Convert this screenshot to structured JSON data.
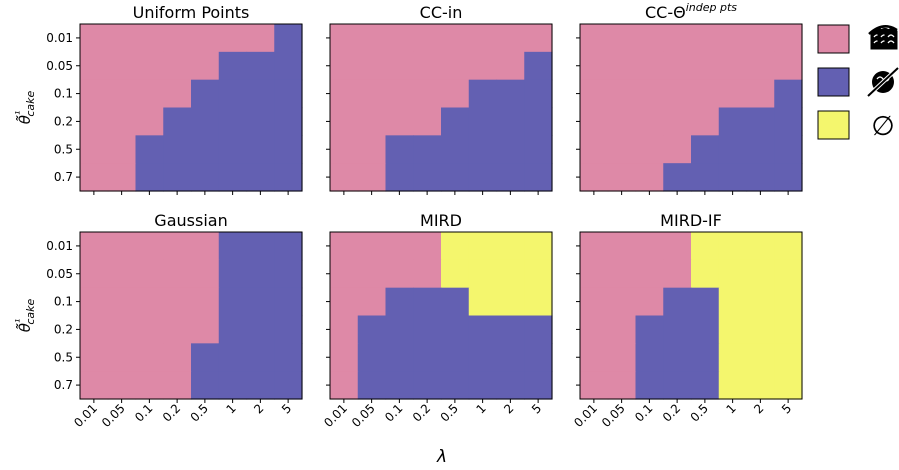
{
  "colors": {
    "pink": "#de89a7",
    "blue": "#6360b2",
    "yellow": "#f4f66d"
  },
  "legend": [
    {
      "color": "pink",
      "icon": "cake-slices-icon"
    },
    {
      "color": "blue",
      "icon": "no-cake-icon"
    },
    {
      "color": "yellow",
      "icon": "empty-set-icon",
      "symbol": "∅"
    }
  ],
  "xlabel": "λ",
  "ylabel": "θ̃¹cake",
  "chart_data": [
    {
      "type": "heatmap",
      "title": "Uniform Points",
      "x_categories": [
        "0.01",
        "0.05",
        "0.1",
        "0.2",
        "0.5",
        "1",
        "2",
        "5"
      ],
      "y_categories": [
        "0.01",
        "0.05",
        "0.1",
        "0.2",
        "0.5",
        "0.7"
      ],
      "values": [
        [
          "pink",
          "pink",
          "pink",
          "pink",
          "pink",
          "pink",
          "pink",
          "blue"
        ],
        [
          "pink",
          "pink",
          "pink",
          "pink",
          "pink",
          "blue",
          "blue",
          "blue"
        ],
        [
          "pink",
          "pink",
          "pink",
          "pink",
          "blue",
          "blue",
          "blue",
          "blue"
        ],
        [
          "pink",
          "pink",
          "pink",
          "blue",
          "blue",
          "blue",
          "blue",
          "blue"
        ],
        [
          "pink",
          "pink",
          "blue",
          "blue",
          "blue",
          "blue",
          "blue",
          "blue"
        ],
        [
          "pink",
          "pink",
          "blue",
          "blue",
          "blue",
          "blue",
          "blue",
          "blue"
        ]
      ]
    },
    {
      "type": "heatmap",
      "title": "CC-in",
      "x_categories": [
        "0.01",
        "0.05",
        "0.1",
        "0.2",
        "0.5",
        "1",
        "2",
        "5"
      ],
      "y_categories": [
        "0.01",
        "0.05",
        "0.1",
        "0.2",
        "0.5",
        "0.7"
      ],
      "values": [
        [
          "pink",
          "pink",
          "pink",
          "pink",
          "pink",
          "pink",
          "pink",
          "pink"
        ],
        [
          "pink",
          "pink",
          "pink",
          "pink",
          "pink",
          "pink",
          "pink",
          "blue"
        ],
        [
          "pink",
          "pink",
          "pink",
          "pink",
          "pink",
          "blue",
          "blue",
          "blue"
        ],
        [
          "pink",
          "pink",
          "pink",
          "pink",
          "blue",
          "blue",
          "blue",
          "blue"
        ],
        [
          "pink",
          "pink",
          "blue",
          "blue",
          "blue",
          "blue",
          "blue",
          "blue"
        ],
        [
          "pink",
          "pink",
          "blue",
          "blue",
          "blue",
          "blue",
          "blue",
          "blue"
        ]
      ]
    },
    {
      "type": "heatmap",
      "title": "CC-Θ",
      "title_sup": "indep pts",
      "x_categories": [
        "0.01",
        "0.05",
        "0.1",
        "0.2",
        "0.5",
        "1",
        "2",
        "5"
      ],
      "y_categories": [
        "0.01",
        "0.05",
        "0.1",
        "0.2",
        "0.5",
        "0.7"
      ],
      "values": [
        [
          "pink",
          "pink",
          "pink",
          "pink",
          "pink",
          "pink",
          "pink",
          "pink"
        ],
        [
          "pink",
          "pink",
          "pink",
          "pink",
          "pink",
          "pink",
          "pink",
          "pink"
        ],
        [
          "pink",
          "pink",
          "pink",
          "pink",
          "pink",
          "pink",
          "pink",
          "blue"
        ],
        [
          "pink",
          "pink",
          "pink",
          "pink",
          "pink",
          "blue",
          "blue",
          "blue"
        ],
        [
          "pink",
          "pink",
          "pink",
          "pink",
          "blue",
          "blue",
          "blue",
          "blue"
        ],
        [
          "pink",
          "pink",
          "pink",
          "blue",
          "blue",
          "blue",
          "blue",
          "blue"
        ]
      ]
    },
    {
      "type": "heatmap",
      "title": "Gaussian",
      "x_categories": [
        "0.01",
        "0.05",
        "0.1",
        "0.2",
        "0.5",
        "1",
        "2",
        "5"
      ],
      "y_categories": [
        "0.01",
        "0.05",
        "0.1",
        "0.2",
        "0.5",
        "0.7"
      ],
      "values": [
        [
          "pink",
          "pink",
          "pink",
          "pink",
          "pink",
          "blue",
          "blue",
          "blue"
        ],
        [
          "pink",
          "pink",
          "pink",
          "pink",
          "pink",
          "blue",
          "blue",
          "blue"
        ],
        [
          "pink",
          "pink",
          "pink",
          "pink",
          "pink",
          "blue",
          "blue",
          "blue"
        ],
        [
          "pink",
          "pink",
          "pink",
          "pink",
          "pink",
          "blue",
          "blue",
          "blue"
        ],
        [
          "pink",
          "pink",
          "pink",
          "pink",
          "blue",
          "blue",
          "blue",
          "blue"
        ],
        [
          "pink",
          "pink",
          "pink",
          "pink",
          "blue",
          "blue",
          "blue",
          "blue"
        ]
      ]
    },
    {
      "type": "heatmap",
      "title": "MIRD",
      "x_categories": [
        "0.01",
        "0.05",
        "0.1",
        "0.2",
        "0.5",
        "1",
        "2",
        "5"
      ],
      "y_categories": [
        "0.01",
        "0.05",
        "0.1",
        "0.2",
        "0.5",
        "0.7"
      ],
      "values": [
        [
          "pink",
          "pink",
          "pink",
          "pink",
          "yellow",
          "yellow",
          "yellow",
          "yellow"
        ],
        [
          "pink",
          "pink",
          "pink",
          "pink",
          "yellow",
          "yellow",
          "yellow",
          "yellow"
        ],
        [
          "pink",
          "pink",
          "blue",
          "blue",
          "blue",
          "yellow",
          "yellow",
          "yellow"
        ],
        [
          "pink",
          "blue",
          "blue",
          "blue",
          "blue",
          "blue",
          "blue",
          "blue"
        ],
        [
          "pink",
          "blue",
          "blue",
          "blue",
          "blue",
          "blue",
          "blue",
          "blue"
        ],
        [
          "pink",
          "blue",
          "blue",
          "blue",
          "blue",
          "blue",
          "blue",
          "blue"
        ]
      ]
    },
    {
      "type": "heatmap",
      "title": "MIRD-IF",
      "x_categories": [
        "0.01",
        "0.05",
        "0.1",
        "0.2",
        "0.5",
        "1",
        "2",
        "5"
      ],
      "y_categories": [
        "0.01",
        "0.05",
        "0.1",
        "0.2",
        "0.5",
        "0.7"
      ],
      "values": [
        [
          "pink",
          "pink",
          "pink",
          "pink",
          "yellow",
          "yellow",
          "yellow",
          "yellow"
        ],
        [
          "pink",
          "pink",
          "pink",
          "pink",
          "yellow",
          "yellow",
          "yellow",
          "yellow"
        ],
        [
          "pink",
          "pink",
          "pink",
          "blue",
          "blue",
          "yellow",
          "yellow",
          "yellow"
        ],
        [
          "pink",
          "pink",
          "blue",
          "blue",
          "blue",
          "yellow",
          "yellow",
          "yellow"
        ],
        [
          "pink",
          "pink",
          "blue",
          "blue",
          "blue",
          "yellow",
          "yellow",
          "yellow"
        ],
        [
          "pink",
          "pink",
          "blue",
          "blue",
          "blue",
          "yellow",
          "yellow",
          "yellow"
        ]
      ]
    }
  ]
}
